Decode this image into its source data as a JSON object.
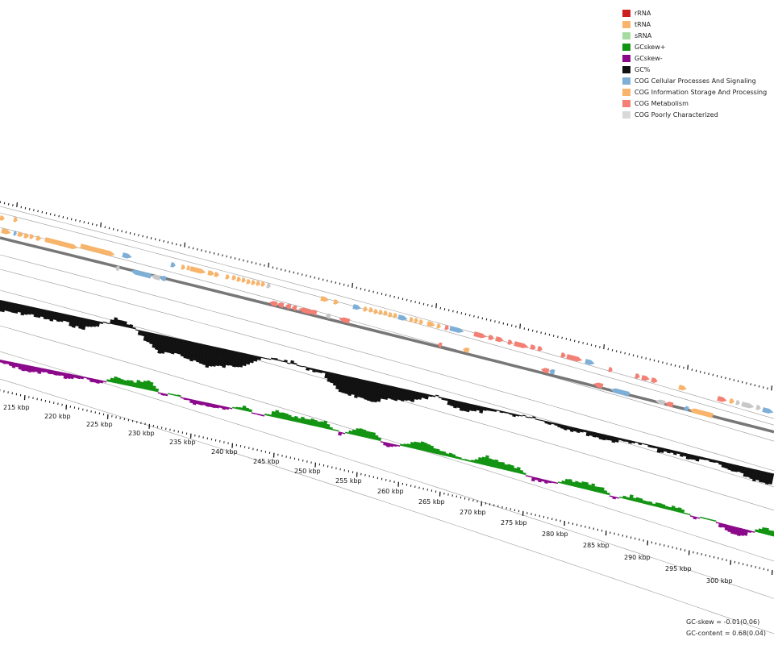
{
  "legend": [
    {
      "label": "rRNA",
      "color": "#cc1f1f"
    },
    {
      "label": "tRNA",
      "color": "#f7b46a"
    },
    {
      "label": "sRNA",
      "color": "#a6dba0"
    },
    {
      "label": "GCskew+",
      "color": "#129412"
    },
    {
      "label": "GCskew-",
      "color": "#8b088b"
    },
    {
      "label": "GC%",
      "color": "#111111"
    },
    {
      "label": "COG Cellular Processes And Signaling",
      "color": "#7eafd6"
    },
    {
      "label": "COG Information Storage And Processing",
      "color": "#f7b46a"
    },
    {
      "label": "COG Metabolism",
      "color": "#f47f74"
    },
    {
      "label": "COG Poorly Characterized",
      "color": "#d9d9d9"
    }
  ],
  "scale": {
    "tick_labels": [
      "215 kbp",
      "220 kbp",
      "225 kbp",
      "230 kbp",
      "235 kbp",
      "240 kbp",
      "245 kbp",
      "250 kbp",
      "255 kbp",
      "260 kbp",
      "265 kbp",
      "270 kbp",
      "275 kbp",
      "280 kbp",
      "285 kbp",
      "290 kbp",
      "295 kbp",
      "300 kbp"
    ]
  },
  "stats": {
    "gc_skew": "GC-skew = -0.01(0.06)",
    "gc_content": "GC-content = 0.68(0.04)"
  },
  "colors": {
    "info": "#f7b46a",
    "cell": "#7eafd6",
    "metab": "#f47f74",
    "poor": "#c8c8c8",
    "gc": "#111111",
    "skew_pos": "#129412",
    "skew_neg": "#8b088b"
  }
}
